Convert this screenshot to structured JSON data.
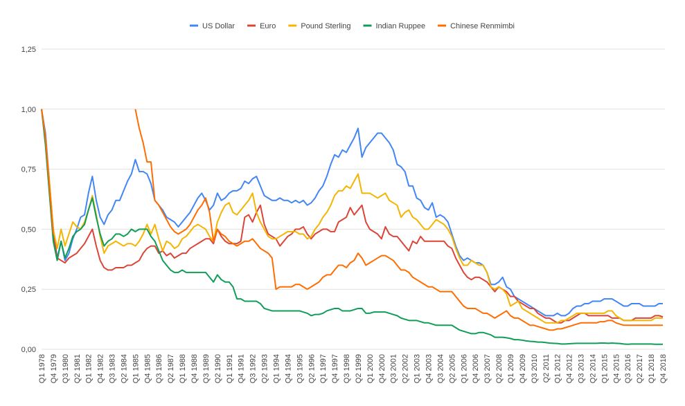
{
  "chart_data": {
    "type": "line",
    "categories": [
      "Q1 1978",
      null,
      null,
      "Q4 1979",
      null,
      null,
      "Q3 1980",
      null,
      null,
      "Q2 1981",
      null,
      null,
      "Q1 1982",
      null,
      null,
      "Q4 1982",
      null,
      null,
      "Q3 1983",
      null,
      null,
      "Q2 1984",
      null,
      null,
      "Q1 1985",
      null,
      null,
      "Q4 1985",
      null,
      null,
      "Q3 1986",
      null,
      null,
      "Q2 1987",
      null,
      null,
      "Q1 1988",
      null,
      null,
      "Q4 1988",
      null,
      null,
      "Q3 1989",
      null,
      null,
      "Q2 1990",
      null,
      null,
      "Q1 1991",
      null,
      null,
      "Q4 1991",
      null,
      null,
      "Q3 1992",
      null,
      null,
      "Q2 1993",
      null,
      null,
      "Q1 1994",
      null,
      null,
      "Q4 1994",
      null,
      null,
      "Q3 1995",
      null,
      null,
      "Q2 1996",
      null,
      null,
      "Q1 1997",
      null,
      null,
      "Q4 1997",
      null,
      null,
      "Q3 1998",
      null,
      null,
      "Q2 1999",
      null,
      null,
      "Q1 2000",
      null,
      null,
      "Q4 2000",
      null,
      null,
      "Q3 2001",
      null,
      null,
      "Q2 2002",
      null,
      null,
      "Q1 2003",
      null,
      null,
      "Q4 2003",
      null,
      null,
      "Q3 2004",
      null,
      null,
      "Q2 2005",
      null,
      null,
      "Q1 2006",
      null,
      null,
      "Q4 2006",
      null,
      null,
      "Q3 2007",
      null,
      null,
      "Q2 2008",
      null,
      null,
      "Q1 2009",
      null,
      null,
      "Q4 2009",
      null,
      null,
      "Q3 2010",
      null,
      null,
      "Q2 2011",
      null,
      null,
      "Q1 2012",
      null,
      null,
      "Q4 2012",
      null,
      null,
      "Q3 2013",
      null,
      null,
      "Q2 2014",
      null,
      null,
      "Q1 2015",
      null,
      null,
      "Q4 2015",
      null,
      null,
      "Q3 2016",
      null,
      null,
      "Q2 2017",
      null,
      null,
      "Q1 2018",
      null,
      null,
      "Q4 2018"
    ],
    "series": [
      {
        "name": "US Dollar",
        "color": "#4285f4",
        "values": [
          1.0,
          0.9,
          0.7,
          0.5,
          0.38,
          0.45,
          0.37,
          0.4,
          0.46,
          0.5,
          0.55,
          0.56,
          0.65,
          0.72,
          0.62,
          0.55,
          0.52,
          0.56,
          0.58,
          0.62,
          0.62,
          0.66,
          0.7,
          0.73,
          0.79,
          0.74,
          0.74,
          0.73,
          0.69,
          0.62,
          0.6,
          0.58,
          0.55,
          0.54,
          0.53,
          0.51,
          0.53,
          0.55,
          0.57,
          0.6,
          0.63,
          0.65,
          0.62,
          0.58,
          0.6,
          0.65,
          0.62,
          0.63,
          0.65,
          0.66,
          0.66,
          0.67,
          0.7,
          0.69,
          0.71,
          0.72,
          0.68,
          0.64,
          0.63,
          0.62,
          0.62,
          0.63,
          0.62,
          0.62,
          0.61,
          0.62,
          0.61,
          0.62,
          0.6,
          0.61,
          0.63,
          0.66,
          0.68,
          0.72,
          0.77,
          0.81,
          0.8,
          0.83,
          0.82,
          0.85,
          0.88,
          0.92,
          0.8,
          0.84,
          0.86,
          0.88,
          0.9,
          0.9,
          0.88,
          0.86,
          0.83,
          0.77,
          0.76,
          0.74,
          0.68,
          0.68,
          0.63,
          0.62,
          0.59,
          0.58,
          0.61,
          0.55,
          0.56,
          0.55,
          0.53,
          0.48,
          0.43,
          0.39,
          0.37,
          0.38,
          0.37,
          0.36,
          0.36,
          0.35,
          0.32,
          0.27,
          0.27,
          0.28,
          0.3,
          0.26,
          0.25,
          0.22,
          0.21,
          0.2,
          0.19,
          0.18,
          0.17,
          0.16,
          0.15,
          0.14,
          0.14,
          0.14,
          0.15,
          0.14,
          0.14,
          0.15,
          0.17,
          0.18,
          0.18,
          0.19,
          0.19,
          0.2,
          0.2,
          0.2,
          0.21,
          0.21,
          0.21,
          0.2,
          0.19,
          0.18,
          0.18,
          0.19,
          0.19,
          0.19,
          0.18,
          0.18,
          0.18,
          0.18,
          0.19,
          0.19
        ]
      },
      {
        "name": "Euro",
        "color": "#db4437",
        "values": [
          1.0,
          0.88,
          0.68,
          0.48,
          0.38,
          0.37,
          0.36,
          0.38,
          0.39,
          0.4,
          0.42,
          0.44,
          0.47,
          0.5,
          0.43,
          0.37,
          0.34,
          0.33,
          0.33,
          0.34,
          0.34,
          0.34,
          0.35,
          0.35,
          0.36,
          0.37,
          0.4,
          0.42,
          0.43,
          0.43,
          0.4,
          0.41,
          0.39,
          0.4,
          0.38,
          0.39,
          0.4,
          0.4,
          0.42,
          0.43,
          0.44,
          0.45,
          0.46,
          0.46,
          0.44,
          0.5,
          0.47,
          0.45,
          0.44,
          0.44,
          0.44,
          0.45,
          0.55,
          0.56,
          0.53,
          0.57,
          0.6,
          0.52,
          0.48,
          0.47,
          0.46,
          0.43,
          0.45,
          0.47,
          0.48,
          0.5,
          0.5,
          0.51,
          0.48,
          0.46,
          0.48,
          0.49,
          0.5,
          0.5,
          0.49,
          0.49,
          0.53,
          0.54,
          0.55,
          0.59,
          0.56,
          0.58,
          0.6,
          0.53,
          0.5,
          0.49,
          0.48,
          0.46,
          0.51,
          0.48,
          0.47,
          0.47,
          0.45,
          0.43,
          0.41,
          0.45,
          0.44,
          0.47,
          0.45,
          0.45,
          0.45,
          0.45,
          0.45,
          0.45,
          0.43,
          0.42,
          0.38,
          0.35,
          0.32,
          0.3,
          0.29,
          0.3,
          0.3,
          0.29,
          0.28,
          0.26,
          0.24,
          0.26,
          0.25,
          0.24,
          0.22,
          0.22,
          0.2,
          0.19,
          0.18,
          0.17,
          0.17,
          0.15,
          0.14,
          0.13,
          0.13,
          0.12,
          0.11,
          0.11,
          0.12,
          0.12,
          0.13,
          0.14,
          0.15,
          0.15,
          0.14,
          0.14,
          0.14,
          0.14,
          0.14,
          0.14,
          0.13,
          0.13,
          0.13,
          0.12,
          0.12,
          0.12,
          0.13,
          0.13,
          0.13,
          0.13,
          0.13,
          0.14,
          0.14,
          0.135
        ]
      },
      {
        "name": "Pound Sterling",
        "color": "#f4b400",
        "values": [
          1.0,
          0.88,
          0.7,
          0.5,
          0.42,
          0.5,
          0.43,
          0.48,
          0.53,
          0.51,
          0.5,
          0.53,
          0.58,
          0.64,
          0.56,
          0.47,
          0.4,
          0.43,
          0.44,
          0.45,
          0.44,
          0.43,
          0.44,
          0.44,
          0.43,
          0.45,
          0.48,
          0.52,
          0.48,
          0.52,
          0.46,
          0.41,
          0.45,
          0.44,
          0.42,
          0.43,
          0.46,
          0.47,
          0.49,
          0.51,
          0.52,
          0.51,
          0.5,
          0.47,
          0.45,
          0.53,
          0.57,
          0.6,
          0.61,
          0.57,
          0.56,
          0.58,
          0.6,
          0.62,
          0.65,
          0.57,
          0.53,
          0.5,
          0.47,
          0.46,
          0.46,
          0.47,
          0.48,
          0.49,
          0.49,
          0.49,
          0.48,
          0.48,
          0.46,
          0.47,
          0.5,
          0.52,
          0.55,
          0.57,
          0.6,
          0.64,
          0.66,
          0.66,
          0.68,
          0.67,
          0.7,
          0.73,
          0.65,
          0.65,
          0.65,
          0.64,
          0.63,
          0.64,
          0.65,
          0.62,
          0.61,
          0.6,
          0.55,
          0.57,
          0.58,
          0.55,
          0.54,
          0.52,
          0.5,
          0.5,
          0.52,
          0.54,
          0.53,
          0.52,
          0.5,
          0.47,
          0.42,
          0.38,
          0.35,
          0.35,
          0.37,
          0.36,
          0.35,
          0.35,
          0.32,
          0.26,
          0.25,
          0.26,
          0.25,
          0.23,
          0.18,
          0.19,
          0.2,
          0.17,
          0.16,
          0.15,
          0.14,
          0.13,
          0.12,
          0.11,
          0.11,
          0.11,
          0.11,
          0.12,
          0.12,
          0.13,
          0.14,
          0.15,
          0.15,
          0.15,
          0.15,
          0.15,
          0.15,
          0.15,
          0.15,
          0.16,
          0.16,
          0.14,
          0.13,
          0.12,
          0.12,
          0.12,
          0.12,
          0.12,
          0.12,
          0.12,
          0.12,
          0.13,
          0.13,
          0.13
        ]
      },
      {
        "name": "Indian Ruppee",
        "color": "#0f9d58",
        "values": [
          1.0,
          0.85,
          0.65,
          0.45,
          0.37,
          0.45,
          0.38,
          0.42,
          0.47,
          0.49,
          0.5,
          0.52,
          0.58,
          0.63,
          0.55,
          0.48,
          0.43,
          0.45,
          0.46,
          0.48,
          0.48,
          0.47,
          0.48,
          0.5,
          0.49,
          0.5,
          0.5,
          0.5,
          0.47,
          0.45,
          0.41,
          0.37,
          0.35,
          0.33,
          0.32,
          0.32,
          0.33,
          0.32,
          0.32,
          0.32,
          0.32,
          0.32,
          0.32,
          0.3,
          0.28,
          0.31,
          0.29,
          0.28,
          0.28,
          0.26,
          0.21,
          0.21,
          0.2,
          0.2,
          0.2,
          0.2,
          0.19,
          0.17,
          0.165,
          0.16,
          0.16,
          0.16,
          0.16,
          0.16,
          0.16,
          0.16,
          0.16,
          0.155,
          0.15,
          0.14,
          0.145,
          0.145,
          0.15,
          0.16,
          0.165,
          0.17,
          0.17,
          0.16,
          0.16,
          0.16,
          0.165,
          0.17,
          0.17,
          0.15,
          0.15,
          0.155,
          0.155,
          0.155,
          0.155,
          0.15,
          0.145,
          0.14,
          0.13,
          0.125,
          0.12,
          0.12,
          0.12,
          0.115,
          0.11,
          0.11,
          0.105,
          0.1,
          0.1,
          0.1,
          0.1,
          0.1,
          0.09,
          0.08,
          0.075,
          0.07,
          0.065,
          0.065,
          0.07,
          0.07,
          0.065,
          0.06,
          0.05,
          0.05,
          0.05,
          0.048,
          0.045,
          0.04,
          0.04,
          0.038,
          0.035,
          0.033,
          0.032,
          0.03,
          0.03,
          0.028,
          0.026,
          0.025,
          0.024,
          0.022,
          0.022,
          0.023,
          0.024,
          0.025,
          0.025,
          0.025,
          0.025,
          0.025,
          0.025,
          0.026,
          0.026,
          0.025,
          0.026,
          0.025,
          0.024,
          0.022,
          0.021,
          0.022,
          0.022,
          0.022,
          0.022,
          0.022,
          0.022,
          0.021,
          0.021,
          0.021
        ]
      },
      {
        "name": "Chinese Renmimbi",
        "color": "#ff6d01",
        "values": [
          1.0,
          0.88,
          0.68,
          0.48,
          null,
          null,
          null,
          null,
          null,
          null,
          null,
          null,
          null,
          null,
          null,
          null,
          null,
          null,
          null,
          null,
          null,
          null,
          null,
          null,
          1.0,
          0.92,
          0.86,
          0.78,
          0.78,
          0.62,
          0.6,
          0.57,
          0.54,
          0.51,
          0.49,
          0.48,
          0.49,
          0.5,
          0.52,
          0.55,
          0.58,
          0.6,
          0.63,
          0.57,
          0.45,
          0.5,
          0.48,
          0.47,
          0.45,
          0.44,
          0.43,
          0.44,
          0.45,
          0.45,
          0.46,
          0.44,
          0.42,
          0.41,
          0.4,
          0.38,
          0.25,
          0.26,
          0.26,
          0.26,
          0.26,
          0.27,
          0.27,
          0.26,
          0.25,
          0.26,
          0.27,
          0.28,
          0.3,
          0.31,
          0.31,
          0.33,
          0.35,
          0.35,
          0.34,
          0.36,
          0.37,
          0.4,
          0.38,
          0.35,
          0.36,
          0.37,
          0.38,
          0.39,
          0.39,
          0.38,
          0.37,
          0.35,
          0.33,
          0.33,
          0.32,
          0.3,
          0.29,
          0.28,
          0.27,
          0.26,
          0.26,
          0.25,
          0.24,
          0.24,
          0.24,
          0.24,
          0.22,
          0.2,
          0.18,
          0.17,
          0.17,
          0.17,
          0.16,
          0.15,
          0.15,
          0.14,
          0.13,
          0.14,
          0.15,
          0.16,
          0.14,
          0.13,
          0.13,
          0.12,
          0.11,
          0.1,
          0.1,
          0.095,
          0.09,
          0.085,
          0.08,
          0.08,
          0.085,
          0.085,
          0.09,
          0.095,
          0.1,
          0.105,
          0.11,
          0.11,
          0.11,
          0.11,
          0.11,
          0.115,
          0.115,
          0.12,
          0.12,
          0.11,
          0.105,
          0.1,
          0.1,
          0.1,
          0.1,
          0.1,
          0.1,
          0.1,
          0.1,
          0.1,
          0.1,
          0.1
        ]
      }
    ],
    "ylim": [
      0,
      1.25
    ],
    "yticks": [
      {
        "value": 0,
        "label": "0,00"
      },
      {
        "value": 0.25,
        "label": "0,25"
      },
      {
        "value": 0.5,
        "label": "0,50"
      },
      {
        "value": 0.75,
        "label": "0,75"
      },
      {
        "value": 1,
        "label": "1,00"
      },
      {
        "value": 1.25,
        "label": "1,25"
      }
    ],
    "grid": true,
    "legend": "top"
  }
}
